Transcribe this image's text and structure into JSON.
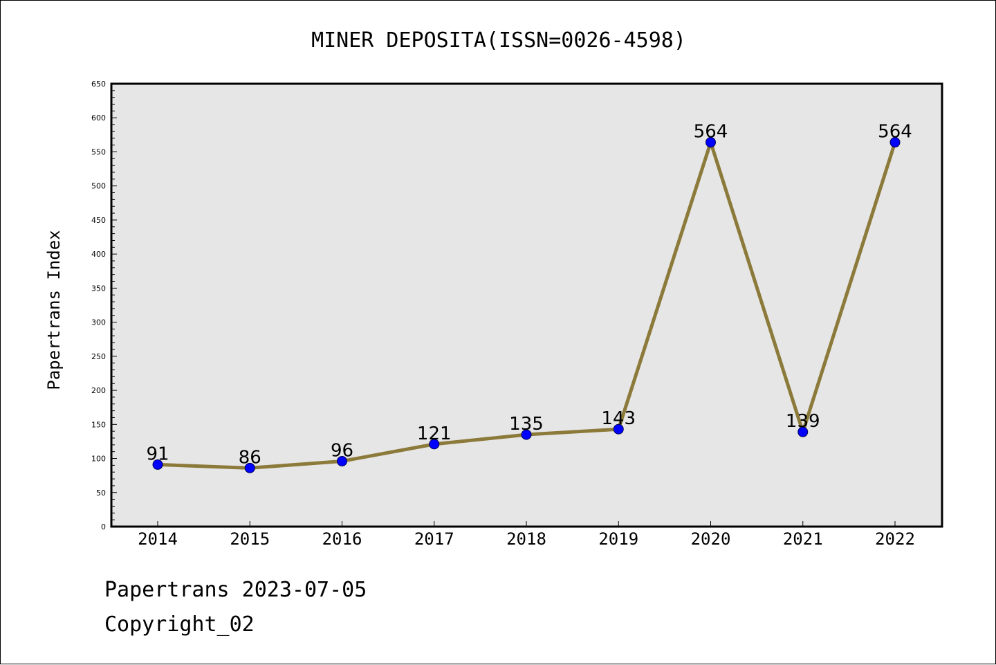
{
  "chart_data": {
    "type": "line",
    "title": "MINER DEPOSITA(ISSN=0026-4598)",
    "xlabel": "",
    "ylabel": "Papertrans Index",
    "categories": [
      "2014",
      "2015",
      "2016",
      "2017",
      "2018",
      "2019",
      "2020",
      "2021",
      "2022"
    ],
    "series": [
      {
        "values": [
          91,
          86,
          96,
          121,
          135,
          143,
          564,
          139,
          564
        ]
      }
    ],
    "ylim": [
      0,
      650
    ],
    "yticks": [
      0,
      50,
      100,
      150,
      200,
      250,
      300,
      350,
      400,
      450,
      500,
      550,
      600,
      650
    ],
    "grid": false,
    "line_color": "#8c7a3a",
    "marker_color": "#0000ff",
    "plot_background": "#e6e6e6"
  },
  "footer": {
    "line1": "Papertrans 2023-07-05",
    "line2": "Copyright_02"
  }
}
